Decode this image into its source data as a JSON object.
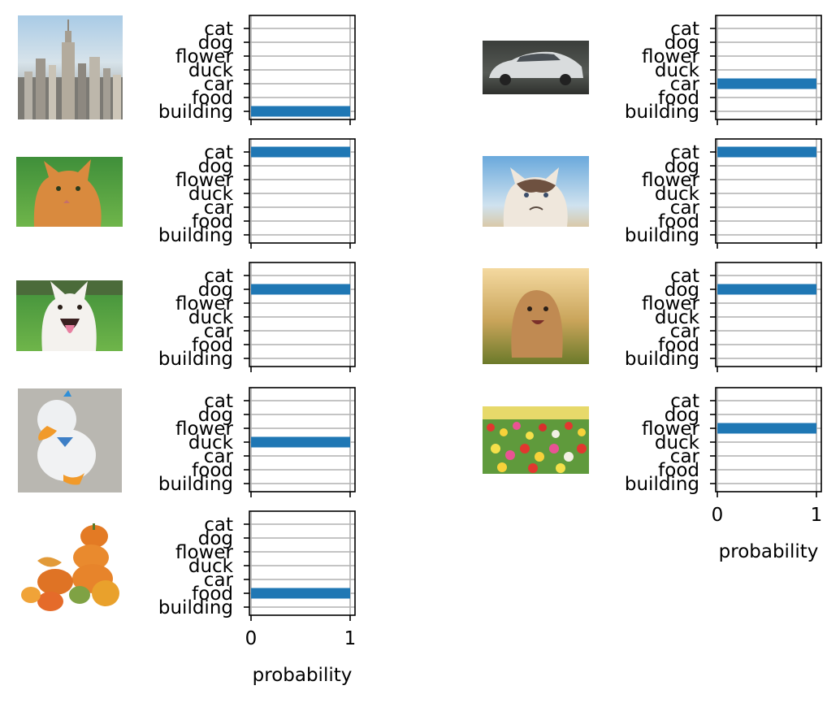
{
  "figure": {
    "xlabel": "probability"
  },
  "chart_data": [
    {
      "type": "bar",
      "orientation": "horizontal",
      "image": "skyline",
      "categories": [
        "cat",
        "dog",
        "flower",
        "duck",
        "car",
        "food",
        "building"
      ],
      "values": [
        0,
        0,
        0,
        0,
        0,
        0,
        1
      ],
      "xlim": [
        0,
        1
      ],
      "xticks": [
        "0",
        "1"
      ],
      "xlabel": "probability",
      "grid": true,
      "bar_color": "#1f77b4"
    },
    {
      "type": "bar",
      "orientation": "horizontal",
      "image": "car",
      "categories": [
        "cat",
        "dog",
        "flower",
        "duck",
        "car",
        "food",
        "building"
      ],
      "values": [
        0,
        0,
        0,
        0,
        1,
        0,
        0
      ],
      "xlim": [
        0,
        1
      ],
      "xticks": [
        "0",
        "1"
      ],
      "xlabel": "probability",
      "grid": true,
      "bar_color": "#1f77b4"
    },
    {
      "type": "bar",
      "orientation": "horizontal",
      "image": "cat",
      "categories": [
        "cat",
        "dog",
        "flower",
        "duck",
        "car",
        "food",
        "building"
      ],
      "values": [
        1,
        0,
        0,
        0,
        0,
        0,
        0
      ],
      "xlim": [
        0,
        1
      ],
      "xticks": [
        "0",
        "1"
      ],
      "xlabel": "probability",
      "grid": true,
      "bar_color": "#1f77b4"
    },
    {
      "type": "bar",
      "orientation": "horizontal",
      "image": "cat",
      "categories": [
        "cat",
        "dog",
        "flower",
        "duck",
        "car",
        "food",
        "building"
      ],
      "values": [
        1,
        0,
        0,
        0,
        0,
        0,
        0
      ],
      "xlim": [
        0,
        1
      ],
      "xticks": [
        "0",
        "1"
      ],
      "xlabel": "probability",
      "grid": true,
      "bar_color": "#1f77b4"
    },
    {
      "type": "bar",
      "orientation": "horizontal",
      "image": "dog",
      "categories": [
        "cat",
        "dog",
        "flower",
        "duck",
        "car",
        "food",
        "building"
      ],
      "values": [
        0,
        1,
        0,
        0,
        0,
        0,
        0
      ],
      "xlim": [
        0,
        1
      ],
      "xticks": [
        "0",
        "1"
      ],
      "xlabel": "probability",
      "grid": true,
      "bar_color": "#1f77b4"
    },
    {
      "type": "bar",
      "orientation": "horizontal",
      "image": "dog",
      "categories": [
        "cat",
        "dog",
        "flower",
        "duck",
        "car",
        "food",
        "building"
      ],
      "values": [
        0,
        1,
        0,
        0,
        0,
        0,
        0
      ],
      "xlim": [
        0,
        1
      ],
      "xticks": [
        "0",
        "1"
      ],
      "xlabel": "probability",
      "grid": true,
      "bar_color": "#1f77b4"
    },
    {
      "type": "bar",
      "orientation": "horizontal",
      "image": "duck",
      "categories": [
        "cat",
        "dog",
        "flower",
        "duck",
        "car",
        "food",
        "building"
      ],
      "values": [
        0,
        0,
        0,
        1,
        0,
        0,
        0
      ],
      "xlim": [
        0,
        1
      ],
      "xticks": [
        "0",
        "1"
      ],
      "xlabel": "probability",
      "grid": true,
      "bar_color": "#1f77b4"
    },
    {
      "type": "bar",
      "orientation": "horizontal",
      "image": "flower",
      "categories": [
        "cat",
        "dog",
        "flower",
        "duck",
        "car",
        "food",
        "building"
      ],
      "values": [
        0,
        0,
        1,
        0,
        0,
        0,
        0
      ],
      "xlim": [
        0,
        1
      ],
      "xticks": [
        "0",
        "1"
      ],
      "xlabel": "probability",
      "grid": true,
      "bar_color": "#1f77b4"
    },
    {
      "type": "bar",
      "orientation": "horizontal",
      "image": "food",
      "categories": [
        "cat",
        "dog",
        "flower",
        "duck",
        "car",
        "food",
        "building"
      ],
      "values": [
        0,
        0,
        0,
        0,
        0,
        1,
        0
      ],
      "xlim": [
        0,
        1
      ],
      "xticks": [
        "0",
        "1"
      ],
      "xlabel": "probability",
      "grid": true,
      "bar_color": "#1f77b4"
    }
  ]
}
